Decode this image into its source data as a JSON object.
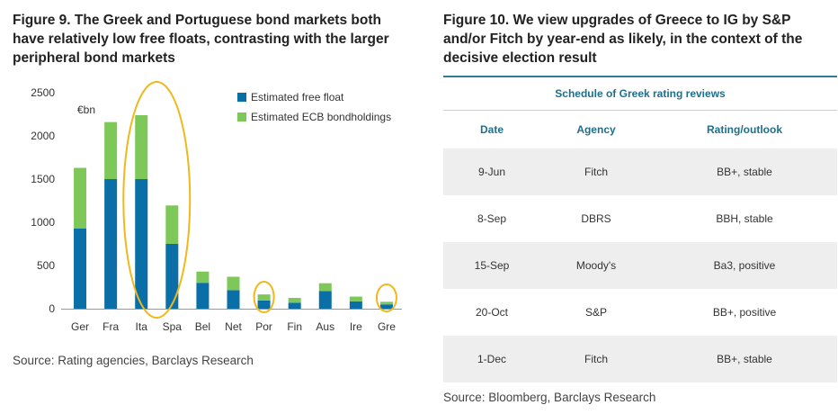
{
  "left_panel": {
    "title": "Figure 9. The Greek and Portuguese bond markets both have relatively low free floats, contrasting with the larger peripheral bond markets",
    "source": "Source: Rating agencies, Barclays Research"
  },
  "right_panel": {
    "title": "Figure 10. We view upgrades of Greece to IG by S&P and/or Fitch by year-end as likely, in the context of the decisive election result",
    "table_caption": "Schedule of Greek rating reviews",
    "headers": [
      "Date",
      "Agency",
      "Rating/outlook"
    ],
    "rows": [
      [
        "9-Jun",
        "Fitch",
        "BB+, stable"
      ],
      [
        "8-Sep",
        "DBRS",
        "BBH, stable"
      ],
      [
        "15-Sep",
        "Moody's",
        "Ba3, positive"
      ],
      [
        "20-Oct",
        "S&P",
        "BB+, positive"
      ],
      [
        "1-Dec",
        "Fitch",
        "BB+, stable"
      ]
    ],
    "source": "Source: Bloomberg, Barclays Research"
  },
  "chart_data": {
    "type": "bar",
    "stacked": true,
    "unit_label": "€bn",
    "categories": [
      "Ger",
      "Fra",
      "Ita",
      "Spa",
      "Bel",
      "Net",
      "Por",
      "Fin",
      "Aus",
      "Ire",
      "Gre"
    ],
    "series": [
      {
        "name": "Estimated free float",
        "color": "#0a6fa6",
        "values": [
          930,
          1500,
          1500,
          750,
          300,
          215,
          95,
          70,
          205,
          85,
          50
        ]
      },
      {
        "name": "Estimated ECB bondholdings",
        "color": "#7ec85a",
        "values": [
          700,
          660,
          740,
          445,
          130,
          155,
          70,
          55,
          90,
          55,
          30
        ]
      }
    ],
    "yticks": [
      0,
      500,
      1000,
      1500,
      2000,
      2500
    ],
    "ylim": [
      0,
      2500
    ],
    "legend_position": "top-right",
    "grid": false,
    "highlight_color": "#f0b81c",
    "highlighted_categories": [
      "Ita",
      "Spa",
      "Por",
      "Gre"
    ]
  }
}
